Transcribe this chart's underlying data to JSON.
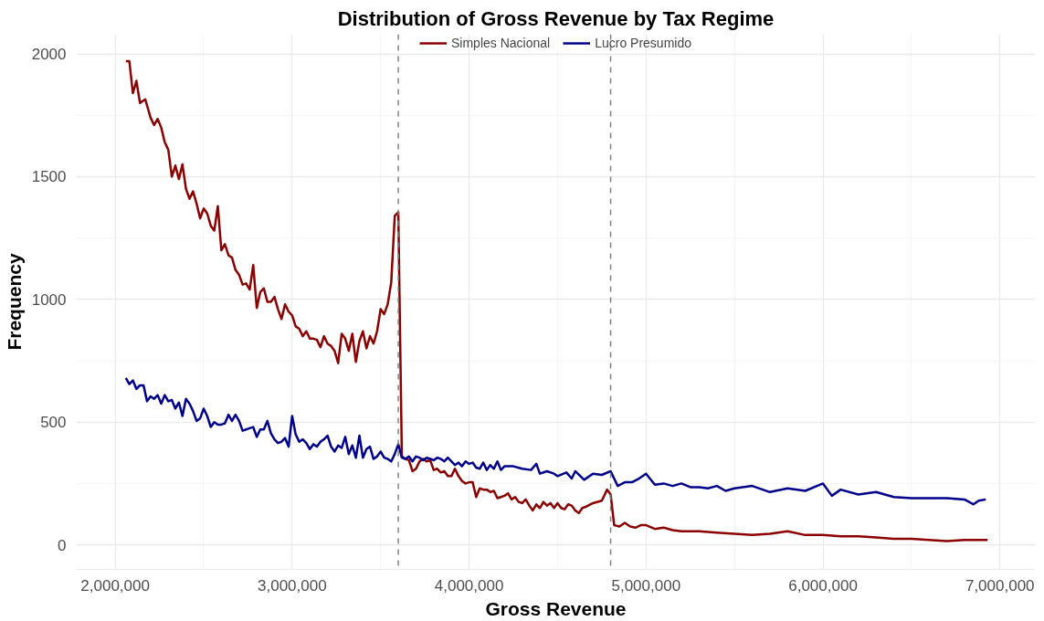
{
  "chart_data": {
    "type": "line",
    "title": "Distribution of Gross Revenue by Tax Regime",
    "xlabel": "Gross Revenue",
    "ylabel": "Frequency",
    "xlim": [
      1780000,
      7200000
    ],
    "ylim": [
      -100,
      2080
    ],
    "xticks": [
      {
        "value": 2000000,
        "label": "2,000,000"
      },
      {
        "value": 3000000,
        "label": "3,000,000"
      },
      {
        "value": 4000000,
        "label": "4,000,000"
      },
      {
        "value": 5000000,
        "label": "5,000,000"
      },
      {
        "value": 6000000,
        "label": "6,000,000"
      },
      {
        "value": 7000000,
        "label": "7,000,000"
      }
    ],
    "yticks": [
      0,
      500,
      1000,
      1500,
      2000
    ],
    "grid": true,
    "legend": "top",
    "line_style": "solid",
    "marker": "none",
    "ref_lines": [
      {
        "axis": "x",
        "value": 3600000,
        "label": null,
        "color": "#808080",
        "line_style": "dashed"
      },
      {
        "axis": "x",
        "value": 4800000,
        "label": null,
        "color": "#808080",
        "line_style": "dashed"
      }
    ],
    "series": [
      {
        "name": "Simples Nacional",
        "color": "#8b0000",
        "x": [
          2060000,
          2080000,
          2100000,
          2120000,
          2140000,
          2170000,
          2200000,
          2220000,
          2240000,
          2260000,
          2280000,
          2300000,
          2320000,
          2340000,
          2360000,
          2380000,
          2400000,
          2420000,
          2440000,
          2460000,
          2480000,
          2500000,
          2520000,
          2540000,
          2560000,
          2580000,
          2600000,
          2620000,
          2640000,
          2660000,
          2680000,
          2700000,
          2720000,
          2740000,
          2760000,
          2780000,
          2800000,
          2820000,
          2840000,
          2860000,
          2880000,
          2900000,
          2920000,
          2940000,
          2960000,
          2980000,
          3000000,
          3020000,
          3040000,
          3060000,
          3080000,
          3100000,
          3120000,
          3140000,
          3160000,
          3180000,
          3200000,
          3220000,
          3240000,
          3260000,
          3280000,
          3300000,
          3320000,
          3340000,
          3360000,
          3380000,
          3400000,
          3420000,
          3440000,
          3460000,
          3480000,
          3500000,
          3520000,
          3540000,
          3560000,
          3580000,
          3600000,
          3620000,
          3640000,
          3660000,
          3680000,
          3700000,
          3720000,
          3740000,
          3760000,
          3780000,
          3800000,
          3820000,
          3840000,
          3860000,
          3880000,
          3900000,
          3920000,
          3940000,
          3960000,
          3980000,
          4000000,
          4020000,
          4040000,
          4060000,
          4080000,
          4100000,
          4120000,
          4140000,
          4160000,
          4180000,
          4200000,
          4220000,
          4240000,
          4260000,
          4280000,
          4300000,
          4320000,
          4340000,
          4360000,
          4380000,
          4400000,
          4420000,
          4440000,
          4460000,
          4480000,
          4500000,
          4520000,
          4540000,
          4560000,
          4580000,
          4600000,
          4620000,
          4640000,
          4660000,
          4700000,
          4750000,
          4780000,
          4800000,
          4820000,
          4850000,
          4880000,
          4910000,
          4940000,
          4970000,
          5000000,
          5050000,
          5100000,
          5150000,
          5200000,
          5300000,
          5400000,
          5500000,
          5600000,
          5700000,
          5800000,
          5900000,
          6000000,
          6100000,
          6200000,
          6300000,
          6400000,
          6500000,
          6600000,
          6700000,
          6800000,
          6900000,
          6930000
        ],
        "values": [
          1970,
          1970,
          1840,
          1890,
          1800,
          1815,
          1740,
          1710,
          1735,
          1700,
          1640,
          1610,
          1500,
          1545,
          1490,
          1550,
          1450,
          1410,
          1440,
          1390,
          1330,
          1370,
          1350,
          1300,
          1280,
          1380,
          1200,
          1225,
          1180,
          1170,
          1120,
          1100,
          1060,
          1065,
          1040,
          1140,
          965,
          1030,
          1045,
          990,
          990,
          1010,
          960,
          920,
          980,
          950,
          935,
          890,
          880,
          850,
          870,
          840,
          840,
          835,
          805,
          850,
          820,
          810,
          790,
          740,
          860,
          840,
          790,
          860,
          745,
          830,
          870,
          800,
          850,
          820,
          870,
          960,
          940,
          980,
          1070,
          1340,
          1355,
          360,
          350,
          345,
          300,
          310,
          340,
          350,
          340,
          345,
          305,
          310,
          295,
          300,
          280,
          280,
          310,
          280,
          260,
          250,
          255,
          255,
          195,
          230,
          225,
          225,
          215,
          220,
          190,
          195,
          200,
          210,
          185,
          195,
          175,
          170,
          185,
          160,
          140,
          165,
          150,
          175,
          160,
          170,
          150,
          170,
          150,
          145,
          165,
          160,
          140,
          130,
          150,
          155,
          170,
          180,
          225,
          205,
          80,
          75,
          90,
          75,
          70,
          80,
          80,
          65,
          70,
          60,
          55,
          55,
          50,
          45,
          40,
          45,
          55,
          40,
          40,
          35,
          35,
          30,
          25,
          25,
          20,
          15,
          20,
          20,
          20
        ]
      },
      {
        "name": "Lucro Presumido",
        "color": "#00008b",
        "x": [
          2060000,
          2080000,
          2100000,
          2120000,
          2140000,
          2160000,
          2180000,
          2200000,
          2220000,
          2240000,
          2260000,
          2280000,
          2300000,
          2320000,
          2340000,
          2360000,
          2380000,
          2400000,
          2420000,
          2440000,
          2460000,
          2480000,
          2500000,
          2520000,
          2540000,
          2560000,
          2580000,
          2600000,
          2620000,
          2640000,
          2660000,
          2680000,
          2700000,
          2720000,
          2740000,
          2760000,
          2780000,
          2800000,
          2820000,
          2840000,
          2860000,
          2880000,
          2900000,
          2920000,
          2940000,
          2960000,
          2980000,
          3000000,
          3020000,
          3040000,
          3060000,
          3080000,
          3100000,
          3120000,
          3140000,
          3160000,
          3180000,
          3200000,
          3220000,
          3240000,
          3260000,
          3280000,
          3300000,
          3320000,
          3340000,
          3360000,
          3380000,
          3400000,
          3420000,
          3440000,
          3460000,
          3480000,
          3500000,
          3520000,
          3540000,
          3560000,
          3580000,
          3600000,
          3620000,
          3640000,
          3660000,
          3680000,
          3700000,
          3720000,
          3740000,
          3760000,
          3780000,
          3800000,
          3820000,
          3840000,
          3860000,
          3880000,
          3900000,
          3920000,
          3940000,
          3960000,
          3980000,
          4000000,
          4020000,
          4040000,
          4060000,
          4080000,
          4100000,
          4120000,
          4140000,
          4160000,
          4180000,
          4200000,
          4250000,
          4300000,
          4350000,
          4380000,
          4400000,
          4440000,
          4480000,
          4500000,
          4550000,
          4580000,
          4600000,
          4650000,
          4700000,
          4750000,
          4800000,
          4840000,
          4880000,
          4920000,
          4960000,
          5000000,
          5050000,
          5100000,
          5150000,
          5200000,
          5250000,
          5300000,
          5350000,
          5400000,
          5450000,
          5500000,
          5600000,
          5700000,
          5800000,
          5900000,
          6000000,
          6050000,
          6100000,
          6200000,
          6300000,
          6400000,
          6500000,
          6600000,
          6700000,
          6800000,
          6850000,
          6880000,
          6920000
        ],
        "values": [
          680,
          655,
          670,
          635,
          650,
          650,
          585,
          605,
          595,
          610,
          575,
          610,
          585,
          590,
          555,
          580,
          525,
          595,
          575,
          545,
          505,
          515,
          555,
          525,
          480,
          500,
          490,
          490,
          495,
          530,
          505,
          530,
          505,
          465,
          470,
          475,
          480,
          440,
          470,
          470,
          505,
          455,
          430,
          415,
          420,
          435,
          400,
          525,
          450,
          420,
          430,
          415,
          390,
          410,
          400,
          420,
          430,
          445,
          400,
          380,
          405,
          395,
          440,
          370,
          405,
          355,
          445,
          355,
          390,
          400,
          350,
          360,
          380,
          355,
          350,
          340,
          370,
          410,
          355,
          350,
          360,
          340,
          360,
          355,
          345,
          355,
          350,
          345,
          355,
          350,
          340,
          355,
          340,
          325,
          335,
          320,
          340,
          330,
          335,
          315,
          310,
          335,
          305,
          325,
          310,
          340,
          305,
          320,
          320,
          310,
          305,
          330,
          290,
          300,
          290,
          280,
          295,
          270,
          300,
          265,
          290,
          285,
          300,
          240,
          255,
          255,
          270,
          290,
          245,
          250,
          240,
          250,
          235,
          235,
          230,
          240,
          220,
          230,
          240,
          215,
          230,
          220,
          250,
          200,
          225,
          205,
          215,
          195,
          190,
          190,
          190,
          185,
          165,
          180,
          185
        ]
      }
    ]
  }
}
